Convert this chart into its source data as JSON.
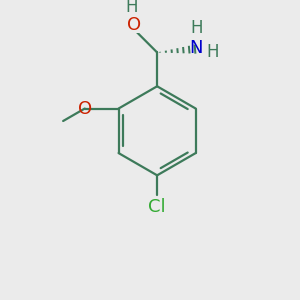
{
  "bg_color": "#ebebeb",
  "bond_color": "#3d7a5a",
  "bond_width": 1.6,
  "atom_colors": {
    "O": "#cc2200",
    "N": "#0000cc",
    "Cl": "#33aa33",
    "C": "#3d7a5a",
    "H": "#3d7a5a"
  },
  "font_size": 13,
  "font_size_sub": 9,
  "font_size_H": 12
}
